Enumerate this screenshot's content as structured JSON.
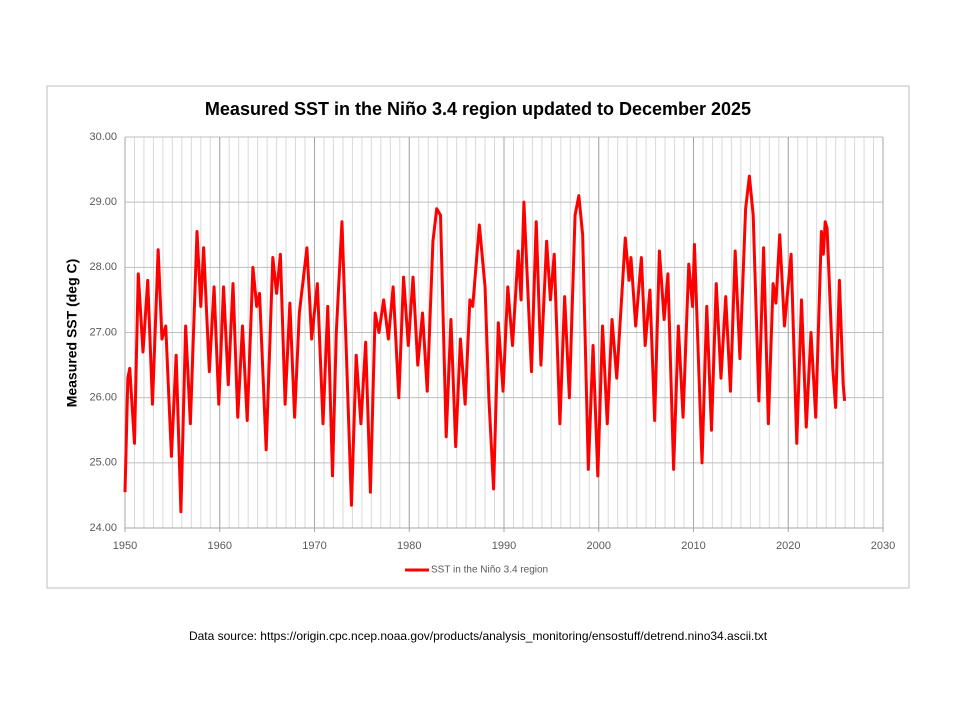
{
  "chart_data": {
    "type": "line",
    "title": "Measured SST in the Niño 3.4 region updated to December 2025",
    "y_label": "Measured SST (deg C)",
    "source": "Data source: https://origin.cpc.ncep.noaa.gov/products/analysis_monitoring/ensostuff/detrend.nino34.ascii.txt",
    "xlim": [
      1950,
      2030
    ],
    "xticks": [
      1950,
      1960,
      1970,
      1980,
      1990,
      2000,
      2010,
      2020,
      2030
    ],
    "x_minor_grid": 1,
    "ylim": [
      24,
      30
    ],
    "yticks": [
      {
        "value": 24,
        "label": "24.00"
      },
      {
        "value": 25,
        "label": "25.00"
      },
      {
        "value": 26,
        "label": "26.00"
      },
      {
        "value": 27,
        "label": "27.00"
      },
      {
        "value": 28,
        "label": "28.00"
      },
      {
        "value": 29,
        "label": "29.00"
      },
      {
        "value": 30,
        "label": "30.00"
      }
    ],
    "grid": true,
    "legend": "bottom",
    "series": [
      {
        "name": "SST in the Niño 3.4 region",
        "color": "#ff0000",
        "x": [
          1950.0,
          1950.3,
          1950.5,
          1951.0,
          1951.4,
          1951.9,
          1952.4,
          1952.9,
          1953.5,
          1953.9,
          1954.3,
          1954.9,
          1955.4,
          1955.9,
          1956.4,
          1956.9,
          1957.6,
          1958.0,
          1958.3,
          1958.9,
          1959.4,
          1959.9,
          1960.4,
          1960.9,
          1961.4,
          1961.9,
          1962.4,
          1962.9,
          1963.5,
          1963.9,
          1964.2,
          1964.9,
          1965.6,
          1966.0,
          1966.4,
          1966.9,
          1967.4,
          1967.9,
          1968.4,
          1969.2,
          1969.7,
          1970.3,
          1970.9,
          1971.4,
          1971.9,
          1972.3,
          1972.9,
          1973.9,
          1974.4,
          1974.9,
          1975.4,
          1975.9,
          1976.4,
          1976.8,
          1977.3,
          1977.8,
          1978.3,
          1978.9,
          1979.4,
          1979.9,
          1980.4,
          1980.9,
          1981.4,
          1981.9,
          1982.5,
          1982.9,
          1983.3,
          1983.9,
          1984.4,
          1984.9,
          1985.4,
          1985.9,
          1986.4,
          1986.7,
          1987.4,
          1988.0,
          1988.4,
          1988.9,
          1989.4,
          1989.9,
          1990.4,
          1990.9,
          1991.5,
          1991.8,
          1992.1,
          1992.9,
          1993.4,
          1993.9,
          1994.5,
          1994.9,
          1995.3,
          1995.9,
          1996.4,
          1996.9,
          1997.5,
          1997.9,
          1998.3,
          1998.9,
          1999.4,
          1999.9,
          2000.4,
          2000.9,
          2001.4,
          2001.9,
          2002.8,
          2003.2,
          2003.4,
          2003.9,
          2004.5,
          2004.9,
          2005.4,
          2005.9,
          2006.4,
          2006.9,
          2007.3,
          2007.9,
          2008.4,
          2008.9,
          2009.5,
          2009.9,
          2010.1,
          2010.9,
          2011.4,
          2011.9,
          2012.4,
          2012.9,
          2013.4,
          2013.9,
          2014.4,
          2014.9,
          2015.5,
          2015.9,
          2016.3,
          2016.9,
          2017.4,
          2017.9,
          2018.4,
          2018.7,
          2019.1,
          2019.6,
          2020.3,
          2020.9,
          2021.4,
          2021.9,
          2022.4,
          2022.9,
          2023.5,
          2023.7,
          2023.9,
          2024.1,
          2024.7,
          2025.0,
          2025.4,
          2025.8,
          2025.95
        ],
        "values": [
          24.55,
          26.3,
          26.45,
          25.3,
          27.9,
          26.7,
          27.8,
          25.9,
          28.27,
          26.9,
          27.1,
          25.1,
          26.65,
          24.25,
          27.1,
          25.6,
          28.55,
          27.4,
          28.3,
          26.4,
          27.7,
          25.9,
          27.7,
          26.2,
          27.75,
          25.7,
          27.1,
          25.65,
          28.0,
          27.4,
          27.6,
          25.2,
          28.15,
          27.6,
          28.2,
          25.9,
          27.45,
          25.7,
          27.3,
          28.3,
          26.9,
          27.75,
          25.6,
          27.4,
          24.8,
          27.0,
          28.7,
          24.35,
          26.65,
          25.6,
          26.85,
          24.55,
          27.3,
          27.0,
          27.5,
          26.9,
          27.7,
          26.0,
          27.85,
          26.8,
          27.85,
          26.5,
          27.3,
          26.1,
          28.4,
          28.9,
          28.8,
          25.4,
          27.2,
          25.25,
          26.9,
          25.9,
          27.5,
          27.4,
          28.65,
          27.7,
          26.0,
          24.6,
          27.15,
          26.1,
          27.7,
          26.8,
          28.25,
          27.5,
          29.0,
          26.4,
          28.7,
          26.5,
          28.4,
          27.5,
          28.2,
          25.6,
          27.55,
          26.0,
          28.8,
          29.1,
          28.5,
          24.9,
          26.8,
          24.8,
          27.1,
          25.6,
          27.2,
          26.3,
          28.45,
          27.8,
          28.15,
          27.1,
          28.15,
          26.8,
          27.65,
          25.65,
          28.25,
          27.2,
          27.9,
          24.9,
          27.1,
          25.7,
          28.05,
          27.4,
          28.35,
          25.0,
          27.4,
          25.5,
          27.75,
          26.3,
          27.55,
          26.1,
          28.25,
          26.6,
          28.9,
          29.4,
          28.8,
          25.95,
          28.3,
          25.6,
          27.75,
          27.45,
          28.5,
          27.1,
          28.2,
          25.3,
          27.5,
          25.55,
          27.0,
          25.7,
          28.55,
          28.2,
          28.7,
          28.6,
          26.45,
          25.85,
          27.8,
          26.2,
          25.95
        ]
      }
    ]
  }
}
